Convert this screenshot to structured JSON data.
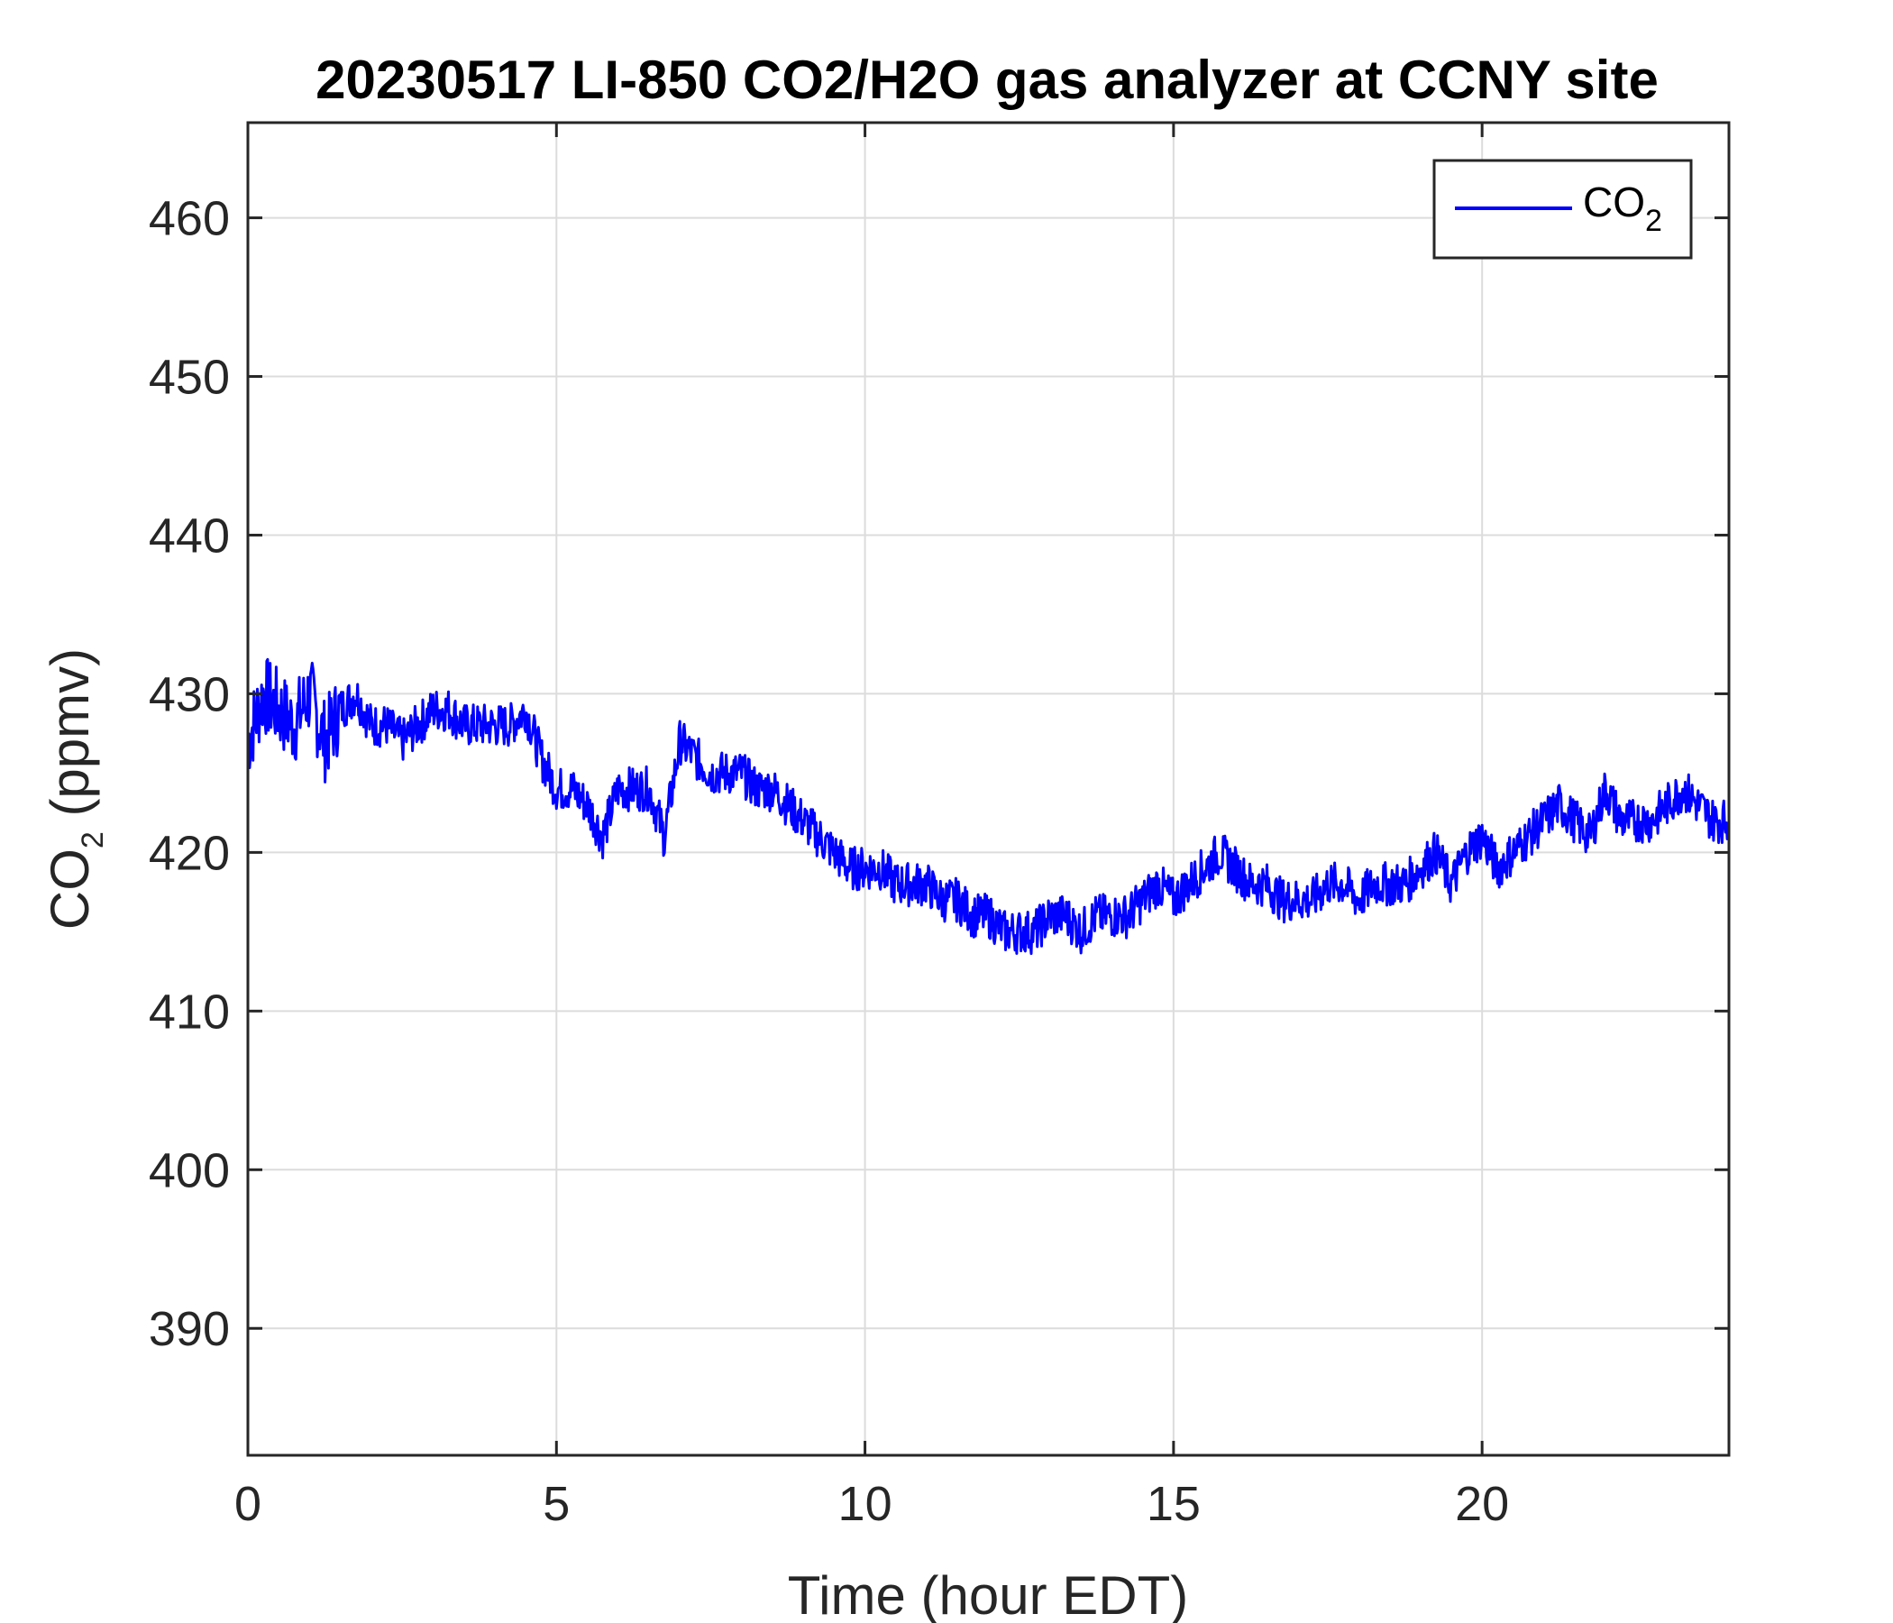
{
  "chart_data": {
    "type": "line",
    "title": "20230517 LI-850 CO2/H2O gas analyzer at CCNY site",
    "xlabel": "Time (hour EDT)",
    "ylabel": {
      "main": "CO",
      "sub": "2",
      "unit": " (ppmv)"
    },
    "xlim": [
      0,
      24
    ],
    "ylim": [
      382,
      466
    ],
    "xticks": [
      0,
      5,
      10,
      15,
      20
    ],
    "yticks": [
      390,
      400,
      410,
      420,
      430,
      440,
      450,
      460
    ],
    "grid": true,
    "legend": {
      "position": "top-right"
    },
    "series": [
      {
        "name": {
          "main": "CO",
          "sub": "2"
        },
        "color": "#0000ff",
        "x": [
          0.0,
          0.25,
          0.5,
          0.75,
          1.0,
          1.25,
          1.5,
          1.75,
          2.0,
          2.25,
          2.5,
          2.75,
          3.0,
          3.25,
          3.5,
          3.75,
          4.0,
          4.25,
          4.5,
          4.75,
          5.0,
          5.25,
          5.5,
          5.75,
          6.0,
          6.25,
          6.5,
          6.75,
          7.0,
          7.25,
          7.5,
          7.75,
          8.0,
          8.25,
          8.5,
          8.75,
          9.0,
          9.25,
          9.5,
          9.75,
          10.0,
          10.25,
          10.5,
          10.75,
          11.0,
          11.25,
          11.5,
          11.75,
          12.0,
          12.25,
          12.5,
          12.75,
          13.0,
          13.25,
          13.5,
          13.75,
          14.0,
          14.25,
          14.5,
          14.75,
          15.0,
          15.25,
          15.5,
          15.75,
          16.0,
          16.25,
          16.5,
          16.75,
          17.0,
          17.25,
          17.5,
          17.75,
          18.0,
          18.25,
          18.5,
          18.75,
          19.0,
          19.25,
          19.5,
          19.75,
          20.0,
          20.25,
          20.5,
          20.75,
          21.0,
          21.25,
          21.5,
          21.75,
          22.0,
          22.25,
          22.5,
          22.75,
          23.0,
          23.25,
          23.5,
          23.75,
          24.0
        ],
        "y": [
          427,
          430,
          429,
          428,
          430,
          427,
          429,
          430,
          428,
          428,
          427,
          428,
          429,
          429,
          428,
          428,
          428,
          428,
          429,
          426,
          424,
          424,
          423,
          421,
          424,
          424,
          424,
          421,
          427,
          426,
          425,
          425,
          425,
          424,
          424,
          423,
          422,
          421,
          420,
          419,
          419,
          419,
          418,
          418,
          418,
          417,
          417,
          416,
          416,
          415,
          415,
          415,
          416,
          416,
          415,
          416,
          416,
          416,
          417,
          418,
          417,
          418,
          419,
          420,
          419,
          418,
          418,
          417,
          417,
          417,
          418,
          418,
          417,
          418,
          418,
          418,
          419,
          420,
          418,
          420,
          421,
          419,
          420,
          421,
          422,
          423,
          422,
          421,
          424,
          422,
          422,
          422,
          423,
          424,
          423,
          422,
          422
        ]
      }
    ]
  }
}
